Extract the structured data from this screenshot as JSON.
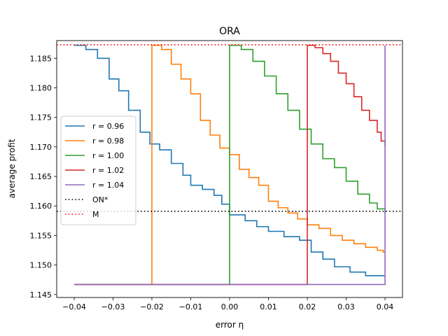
{
  "chart_data": {
    "type": "line",
    "title": "ORA",
    "xlabel": "error η",
    "ylabel": "average profit",
    "xlim": [
      -0.0445,
      0.0445
    ],
    "ylim": [
      1.1445,
      1.188
    ],
    "xticks": [
      -0.04,
      -0.03,
      -0.02,
      -0.01,
      0.0,
      0.01,
      0.02,
      0.03,
      0.04
    ],
    "xtick_labels": [
      "−0.04",
      "−0.03",
      "−0.02",
      "−0.01",
      "0.00",
      "0.01",
      "0.02",
      "0.03",
      "0.04"
    ],
    "yticks": [
      1.145,
      1.15,
      1.155,
      1.16,
      1.165,
      1.17,
      1.175,
      1.18,
      1.185
    ],
    "ytick_labels": [
      "1.145",
      "1.150",
      "1.155",
      "1.160",
      "1.165",
      "1.170",
      "1.175",
      "1.180",
      "1.185"
    ],
    "grid": false,
    "legend_position": "center-left",
    "series": [
      {
        "name": "r = 0.96",
        "color": "#1f77b4",
        "style": "solid",
        "x": [
          -0.04,
          -0.037,
          -0.034,
          -0.031,
          -0.0285,
          -0.026,
          -0.023,
          -0.0205,
          -0.018,
          -0.015,
          -0.012,
          -0.01,
          -0.007,
          -0.004,
          -0.002,
          0.0,
          0.004,
          0.007,
          0.01,
          0.014,
          0.018,
          0.021,
          0.024,
          0.027,
          0.031,
          0.035,
          0.04
        ],
        "y": [
          1.1872,
          1.1865,
          1.185,
          1.1815,
          1.1795,
          1.1762,
          1.1725,
          1.1705,
          1.1695,
          1.1672,
          1.1652,
          1.1635,
          1.1628,
          1.1618,
          1.1603,
          1.1585,
          1.1575,
          1.1565,
          1.1557,
          1.1548,
          1.1542,
          1.1522,
          1.151,
          1.1497,
          1.1488,
          1.1482,
          1.1482
        ]
      },
      {
        "name": "r = 0.98",
        "color": "#ff7f0e",
        "style": "solid",
        "x": [
          -0.04,
          -0.02,
          -0.02,
          -0.0175,
          -0.015,
          -0.0125,
          -0.01,
          -0.0075,
          -0.005,
          -0.0025,
          0.0,
          0.0025,
          0.005,
          0.0075,
          0.01,
          0.0125,
          0.015,
          0.0175,
          0.02,
          0.023,
          0.026,
          0.029,
          0.032,
          0.035,
          0.038,
          0.0395,
          0.04
        ],
        "y": [
          1.1467,
          1.1467,
          1.1872,
          1.1865,
          1.184,
          1.1815,
          1.179,
          1.1745,
          1.172,
          1.1698,
          1.1687,
          1.1662,
          1.1648,
          1.1635,
          1.1608,
          1.1597,
          1.1588,
          1.1578,
          1.1568,
          1.1562,
          1.155,
          1.1542,
          1.1536,
          1.153,
          1.1525,
          1.1522,
          1.1522
        ]
      },
      {
        "name": "r = 1.00",
        "color": "#2ca02c",
        "style": "solid",
        "x": [
          -0.04,
          0.0,
          0.0,
          0.003,
          0.006,
          0.009,
          0.012,
          0.015,
          0.018,
          0.021,
          0.024,
          0.027,
          0.03,
          0.033,
          0.036,
          0.038,
          0.04
        ],
        "y": [
          1.1467,
          1.1467,
          1.1872,
          1.1865,
          1.1845,
          1.182,
          1.179,
          1.1762,
          1.173,
          1.1705,
          1.168,
          1.1665,
          1.1642,
          1.162,
          1.1605,
          1.1595,
          1.1587
        ]
      },
      {
        "name": "r = 1.02",
        "color": "#d62728",
        "style": "solid",
        "x": [
          -0.04,
          0.02,
          0.02,
          0.022,
          0.024,
          0.026,
          0.028,
          0.03,
          0.032,
          0.034,
          0.036,
          0.038,
          0.039,
          0.04
        ],
        "y": [
          1.1467,
          1.1467,
          1.1872,
          1.1868,
          1.1858,
          1.1845,
          1.1825,
          1.1807,
          1.1785,
          1.1762,
          1.1745,
          1.1725,
          1.171,
          1.1702
        ]
      },
      {
        "name": "r = 1.04",
        "color": "#9467bd",
        "style": "solid",
        "x": [
          -0.04,
          0.04,
          0.04
        ],
        "y": [
          1.1467,
          1.1467,
          1.1872
        ]
      },
      {
        "name": "ON*",
        "color": "#000000",
        "style": "dotted",
        "x": [
          -0.0445,
          0.0445
        ],
        "y": [
          1.1591,
          1.1591
        ]
      },
      {
        "name": "M",
        "color": "#ff0000",
        "style": "dotted",
        "x": [
          -0.0445,
          0.0445
        ],
        "y": [
          1.1873,
          1.1873
        ]
      }
    ]
  }
}
